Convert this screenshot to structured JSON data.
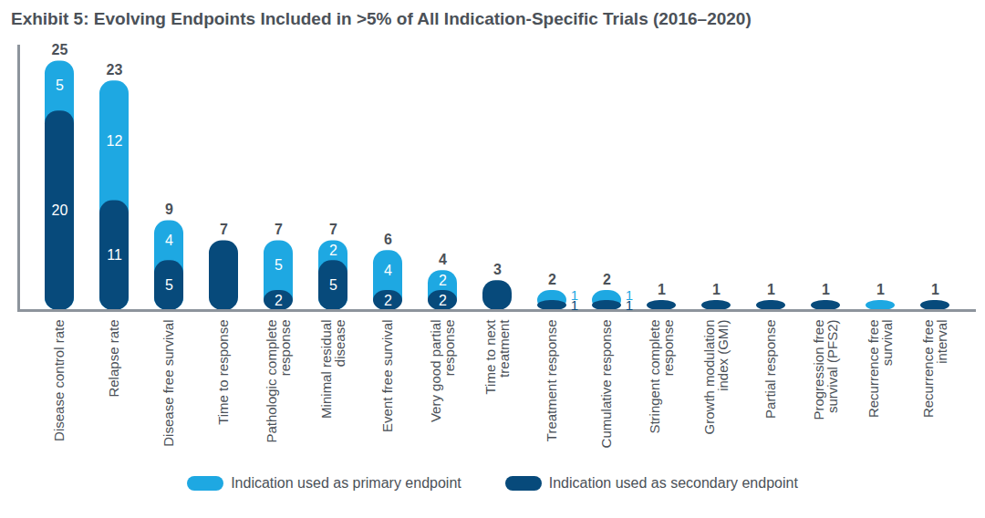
{
  "chart_data": {
    "type": "bar",
    "title": "Exhibit 5: Evolving Endpoints Included in >5% of All Indication-Specific Trials (2016–2020)",
    "categories": [
      "Disease control rate",
      "Relapse rate",
      "Disease free survival",
      "Time to response",
      "Pathologic complete response",
      "Minimal residual disease",
      "Event free survival",
      "Very good partial response",
      "Time to next treatment",
      "Treatment response",
      "Cumulative response",
      "Stringent complete response",
      "Growth modulation index (GMI)",
      "Partial response",
      "Progression free survival (PFS2)",
      "Recurrence free survival",
      "Recurrence free interval"
    ],
    "series": [
      {
        "name": "Indication used as primary endpoint",
        "color": "#1ea8e2",
        "values": [
          5,
          12,
          4,
          null,
          5,
          2,
          4,
          2,
          null,
          1,
          1,
          null,
          null,
          null,
          null,
          1,
          null
        ]
      },
      {
        "name": "Indication used as secondary endpoint",
        "color": "#074a7b",
        "values": [
          20,
          11,
          5,
          7,
          2,
          5,
          2,
          2,
          3,
          1,
          1,
          1,
          1,
          1,
          1,
          null,
          1
        ]
      }
    ],
    "totals": [
      25,
      23,
      9,
      7,
      7,
      7,
      6,
      4,
      3,
      2,
      2,
      1,
      1,
      1,
      1,
      1,
      1
    ],
    "stacked": true,
    "data_labels": true,
    "ylim": [
      0,
      26.5
    ],
    "yticks": [],
    "tick_labels": "x",
    "grid": false,
    "legend": "bottom"
  }
}
